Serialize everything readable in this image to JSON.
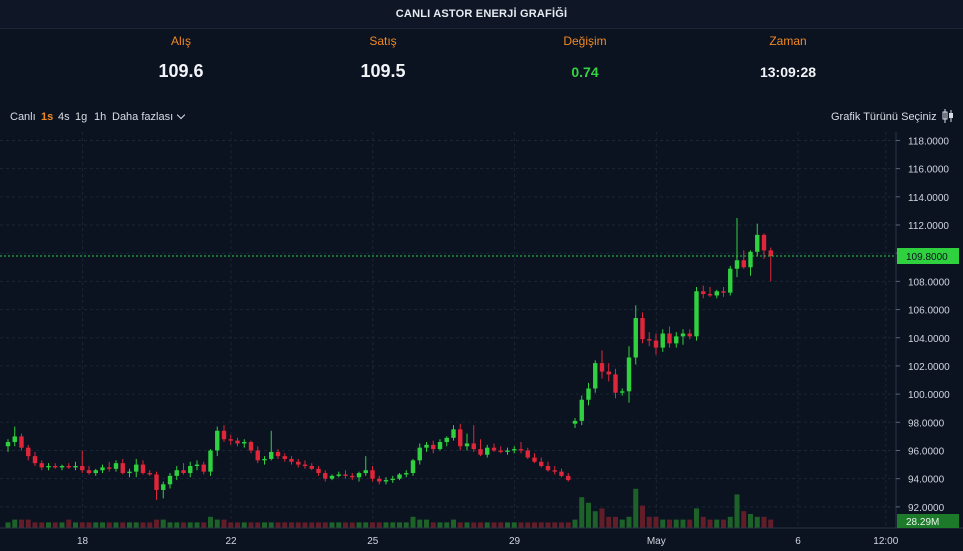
{
  "title": "CANLI ASTOR ENERJİ GRAFİĞİ",
  "quotes": [
    {
      "label": "Alış",
      "value": "109.6"
    },
    {
      "label": "Satış",
      "value": "109.5"
    },
    {
      "label": "Değişim",
      "value": "0.74"
    },
    {
      "label": "Zaman",
      "value": "13:09:28"
    }
  ],
  "toolbar": {
    "live": "Canlı",
    "intervals": [
      "1s",
      "4s",
      "1g",
      "1h"
    ],
    "active_interval": "1s",
    "more": "Daha fazlası",
    "chart_type": "Grafik Türünü Seçiniz"
  },
  "colors": {
    "up": "#2fd13f",
    "down": "#e0263a",
    "accent": "#f08a24",
    "price_label": "#2fd13f"
  },
  "chart_data": {
    "type": "candlestick",
    "y_ticks": [
      "92.0000",
      "94.0000",
      "96.0000",
      "98.0000",
      "100.0000",
      "102.0000",
      "104.0000",
      "106.0000",
      "108.0000",
      "110.0000",
      "112.0000",
      "114.0000",
      "116.0000",
      "118.0000"
    ],
    "ylim": [
      90.5,
      118.6
    ],
    "x_ticks": [
      "18",
      "22",
      "25",
      "29",
      "May",
      "6",
      "12:00"
    ],
    "last_price": "109.8000",
    "volume_label": "28.29M",
    "candles": [
      [
        96.3,
        96.8,
        95.9,
        96.6
      ],
      [
        96.6,
        97.7,
        96.3,
        97.0
      ],
      [
        97.0,
        97.2,
        96.0,
        96.2
      ],
      [
        96.2,
        96.4,
        95.3,
        95.6
      ],
      [
        95.6,
        95.9,
        94.9,
        95.1
      ],
      [
        95.1,
        95.3,
        94.6,
        94.8
      ],
      [
        94.8,
        95.1,
        94.6,
        94.9
      ],
      [
        94.9,
        95.1,
        94.7,
        94.8
      ],
      [
        94.8,
        95.0,
        94.6,
        94.9
      ],
      [
        94.9,
        95.1,
        94.7,
        94.8
      ],
      [
        94.8,
        95.2,
        94.6,
        94.9
      ],
      [
        94.9,
        96.0,
        94.4,
        94.6
      ],
      [
        94.6,
        94.9,
        94.3,
        94.4
      ],
      [
        94.4,
        94.7,
        94.2,
        94.6
      ],
      [
        94.6,
        95.0,
        94.4,
        94.8
      ],
      [
        94.8,
        95.2,
        94.5,
        94.7
      ],
      [
        94.7,
        95.3,
        94.5,
        95.1
      ],
      [
        95.1,
        95.4,
        94.3,
        94.4
      ],
      [
        94.4,
        94.7,
        94.1,
        94.5
      ],
      [
        94.5,
        95.4,
        94.1,
        95.0
      ],
      [
        95.0,
        95.3,
        94.3,
        94.4
      ],
      [
        94.4,
        94.6,
        94.2,
        94.3
      ],
      [
        94.3,
        94.5,
        92.5,
        93.2
      ],
      [
        93.2,
        93.8,
        92.6,
        93.6
      ],
      [
        93.6,
        94.4,
        93.3,
        94.2
      ],
      [
        94.2,
        94.9,
        93.9,
        94.6
      ],
      [
        94.6,
        95.1,
        94.3,
        94.4
      ],
      [
        94.4,
        95.2,
        94.1,
        94.9
      ],
      [
        94.9,
        95.3,
        94.6,
        95.0
      ],
      [
        95.0,
        95.2,
        94.3,
        94.5
      ],
      [
        94.5,
        96.1,
        94.2,
        96.0
      ],
      [
        96.0,
        97.7,
        95.6,
        97.4
      ],
      [
        97.4,
        97.8,
        96.6,
        96.8
      ],
      [
        96.8,
        97.1,
        96.4,
        96.7
      ],
      [
        96.7,
        96.9,
        96.3,
        96.5
      ],
      [
        96.5,
        96.8,
        96.2,
        96.6
      ],
      [
        96.6,
        96.7,
        95.8,
        96.0
      ],
      [
        96.0,
        96.3,
        95.1,
        95.3
      ],
      [
        95.3,
        95.6,
        95.0,
        95.4
      ],
      [
        95.4,
        97.4,
        95.3,
        95.9
      ],
      [
        95.9,
        96.1,
        95.4,
        95.6
      ],
      [
        95.6,
        95.8,
        95.2,
        95.4
      ],
      [
        95.4,
        95.6,
        95.0,
        95.2
      ],
      [
        95.2,
        95.4,
        94.8,
        95.0
      ],
      [
        95.0,
        95.3,
        94.7,
        94.9
      ],
      [
        94.9,
        95.1,
        94.6,
        94.7
      ],
      [
        94.7,
        94.9,
        94.2,
        94.4
      ],
      [
        94.4,
        94.6,
        93.8,
        94.0
      ],
      [
        94.0,
        94.3,
        93.9,
        94.2
      ],
      [
        94.2,
        94.5,
        94.1,
        94.3
      ],
      [
        94.3,
        94.6,
        94.0,
        94.2
      ],
      [
        94.2,
        94.4,
        93.9,
        94.1
      ],
      [
        94.1,
        94.5,
        93.8,
        94.4
      ],
      [
        94.4,
        95.6,
        94.2,
        94.6
      ],
      [
        94.6,
        94.9,
        93.8,
        94.0
      ],
      [
        94.0,
        94.2,
        93.6,
        93.8
      ],
      [
        93.8,
        94.1,
        93.6,
        93.9
      ],
      [
        93.9,
        94.2,
        93.7,
        94.0
      ],
      [
        94.0,
        94.4,
        93.9,
        94.3
      ],
      [
        94.3,
        94.6,
        94.1,
        94.4
      ],
      [
        94.4,
        95.4,
        94.2,
        95.3
      ],
      [
        95.3,
        96.5,
        95.0,
        96.2
      ],
      [
        96.2,
        96.6,
        95.9,
        96.4
      ],
      [
        96.4,
        96.7,
        95.8,
        96.1
      ],
      [
        96.1,
        96.8,
        96.0,
        96.6
      ],
      [
        96.6,
        97.0,
        96.3,
        96.9
      ],
      [
        96.9,
        97.8,
        96.7,
        97.5
      ],
      [
        97.5,
        97.9,
        96.0,
        96.3
      ],
      [
        96.3,
        97.2,
        96.0,
        96.5
      ],
      [
        96.5,
        97.8,
        95.9,
        96.1
      ],
      [
        96.1,
        96.8,
        95.6,
        95.7
      ],
      [
        95.7,
        96.4,
        95.5,
        96.2
      ],
      [
        96.2,
        96.5,
        95.9,
        96.0
      ],
      [
        96.0,
        96.3,
        95.8,
        95.9
      ],
      [
        95.9,
        96.2,
        95.7,
        96.0
      ],
      [
        96.0,
        96.3,
        95.8,
        96.1
      ],
      [
        96.1,
        96.6,
        95.8,
        96.0
      ],
      [
        96.0,
        96.2,
        95.4,
        95.5
      ],
      [
        95.5,
        95.8,
        95.1,
        95.2
      ],
      [
        95.2,
        95.5,
        94.8,
        94.9
      ],
      [
        94.9,
        95.2,
        94.5,
        94.6
      ],
      [
        94.6,
        94.9,
        94.3,
        94.5
      ],
      [
        94.5,
        94.7,
        94.1,
        94.2
      ],
      [
        94.2,
        94.4,
        93.8,
        93.9
      ],
      [
        97.9,
        98.3,
        97.6,
        98.1
      ],
      [
        98.1,
        99.9,
        97.8,
        99.6
      ],
      [
        99.6,
        100.8,
        99.2,
        100.4
      ],
      [
        100.4,
        102.4,
        100.1,
        102.2
      ],
      [
        102.2,
        103.1,
        101.1,
        101.6
      ],
      [
        101.6,
        102.2,
        100.9,
        101.4
      ],
      [
        101.4,
        101.8,
        99.7,
        100.1
      ],
      [
        100.1,
        100.4,
        99.9,
        100.2
      ],
      [
        100.2,
        103.4,
        99.4,
        102.6
      ],
      [
        102.6,
        106.3,
        102.1,
        105.4
      ],
      [
        105.4,
        105.8,
        103.6,
        103.9
      ],
      [
        103.9,
        104.4,
        103.4,
        103.8
      ],
      [
        103.8,
        104.3,
        102.8,
        103.3
      ],
      [
        103.3,
        104.6,
        103.0,
        104.3
      ],
      [
        104.3,
        104.8,
        103.3,
        103.6
      ],
      [
        103.6,
        104.4,
        103.3,
        104.1
      ],
      [
        104.1,
        104.6,
        103.5,
        104.3
      ],
      [
        104.3,
        104.6,
        103.9,
        104.1
      ],
      [
        104.1,
        107.6,
        103.8,
        107.3
      ],
      [
        107.3,
        107.7,
        106.8,
        107.1
      ],
      [
        107.1,
        107.6,
        106.9,
        107.0
      ],
      [
        107.0,
        107.4,
        106.8,
        107.3
      ],
      [
        107.3,
        107.6,
        106.9,
        107.2
      ],
      [
        107.2,
        109.1,
        107.0,
        108.9
      ],
      [
        108.9,
        112.5,
        108.3,
        109.5
      ],
      [
        109.5,
        110.2,
        108.9,
        109.0
      ],
      [
        109.0,
        110.2,
        108.4,
        110.1
      ],
      [
        110.1,
        112.1,
        109.8,
        111.3
      ],
      [
        111.3,
        111.4,
        109.6,
        110.2
      ],
      [
        110.2,
        110.4,
        108.0,
        109.8
      ]
    ],
    "volumes": [
      2,
      3,
      3,
      3,
      2,
      2,
      2,
      2,
      2,
      3,
      2,
      2,
      2,
      2,
      2,
      2,
      2,
      2,
      2,
      2,
      2,
      2,
      3,
      3,
      2,
      2,
      2,
      2,
      2,
      2,
      4,
      3,
      3,
      2,
      2,
      2,
      2,
      2,
      2,
      2,
      2,
      2,
      2,
      2,
      2,
      2,
      2,
      2,
      2,
      2,
      2,
      2,
      2,
      2,
      2,
      2,
      2,
      2,
      2,
      2,
      4,
      3,
      3,
      2,
      2,
      2,
      3,
      2,
      2,
      2,
      2,
      2,
      2,
      2,
      2,
      2,
      2,
      2,
      2,
      2,
      2,
      2,
      2,
      2,
      3,
      11,
      9,
      6,
      7,
      4,
      4,
      3,
      4,
      14,
      8,
      4,
      4,
      3,
      3,
      3,
      3,
      3,
      7,
      4,
      3,
      3,
      3,
      4,
      12,
      6,
      5,
      4,
      4,
      3
    ]
  }
}
